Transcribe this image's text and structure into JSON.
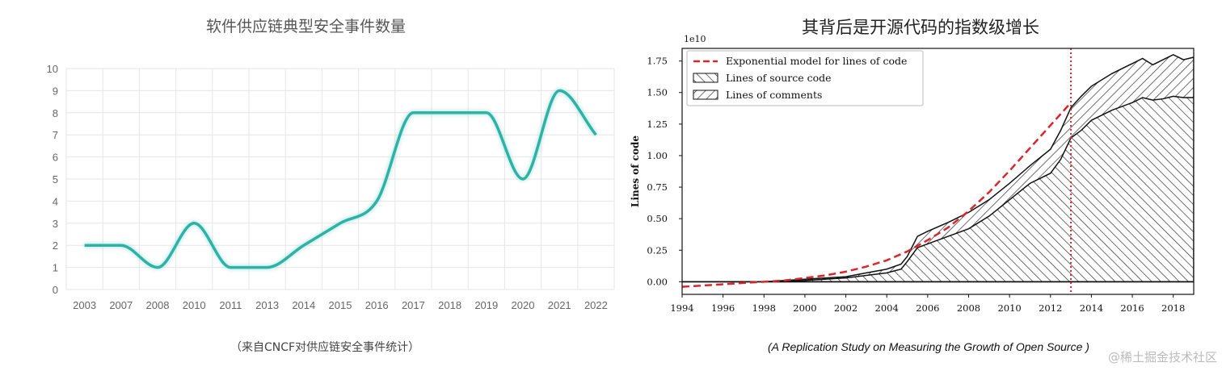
{
  "left": {
    "title": "软件供应链典型安全事件数量",
    "caption": "（来自CNCF对供应链安全事件统计）"
  },
  "right": {
    "title": "其背后是开源代码的指数级增长",
    "caption": "(A Replication Study on Measuring the Growth of Open Source )",
    "watermark": "@稀土掘金技术社区"
  },
  "colors": {
    "line": "#2bb3a7",
    "red": "#d9262b",
    "grid": "#e6e6e6"
  },
  "chart_data": [
    {
      "type": "line",
      "title": "软件供应链典型安全事件数量",
      "categories": [
        "2003",
        "2007",
        "2008",
        "2010",
        "2011",
        "2013",
        "2014",
        "2015",
        "2016",
        "2017",
        "2018",
        "2019",
        "2020",
        "2021",
        "2022"
      ],
      "values": [
        2,
        2,
        1,
        3,
        1,
        1,
        2,
        3,
        4,
        8,
        8,
        8,
        5,
        9,
        7
      ],
      "ylim": [
        0,
        10
      ],
      "yticks": [
        "0",
        "1",
        "2",
        "3",
        "4",
        "5",
        "6",
        "7",
        "8",
        "9",
        "10"
      ],
      "smooth": true,
      "grid": true
    },
    {
      "type": "area",
      "ylabel": "Lines of code",
      "scale_label": "1e10",
      "xlim": [
        1994,
        2019
      ],
      "ylim": [
        -0.1,
        1.85
      ],
      "xticks": [
        "1994",
        "1996",
        "1998",
        "2000",
        "2002",
        "2004",
        "2006",
        "2008",
        "2010",
        "2012",
        "2014",
        "2016",
        "2018"
      ],
      "yticks": [
        "0.00",
        "0.25",
        "0.50",
        "0.75",
        "1.00",
        "1.25",
        "1.50",
        "1.75"
      ],
      "legend_position": "top-left",
      "legend": [
        "Exponential model for lines of code",
        "Lines of source code",
        "Lines of comments"
      ],
      "vline_x": 2013,
      "series": [
        {
          "name": "Exponential model for lines of code",
          "x": [
            1994,
            1995,
            1996,
            1997,
            1998,
            1999,
            2000,
            2001,
            2002,
            2003,
            2004,
            2005,
            2006,
            2007,
            2008,
            2009,
            2010,
            2011,
            2012,
            2013
          ],
          "values": [
            -0.04,
            -0.03,
            -0.02,
            -0.01,
            0.0,
            0.01,
            0.03,
            0.05,
            0.08,
            0.12,
            0.17,
            0.24,
            0.33,
            0.43,
            0.56,
            0.71,
            0.88,
            1.06,
            1.24,
            1.42
          ]
        },
        {
          "name": "Lines of source code",
          "x": [
            1994,
            1996,
            1998,
            2000,
            2002,
            2003,
            2004,
            2004.7,
            2005,
            2005.5,
            2006,
            2007,
            2008,
            2009,
            2010,
            2011,
            2012,
            2012.5,
            2013,
            2013.5,
            2014,
            2015,
            2016,
            2016.5,
            2017,
            2017.5,
            2018,
            2018.5,
            2019
          ],
          "values": [
            0.0,
            0.0,
            0.0,
            0.01,
            0.03,
            0.05,
            0.07,
            0.1,
            0.16,
            0.27,
            0.3,
            0.36,
            0.42,
            0.52,
            0.65,
            0.78,
            0.86,
            0.97,
            1.14,
            1.2,
            1.28,
            1.36,
            1.42,
            1.46,
            1.44,
            1.45,
            1.47,
            1.46,
            1.46
          ]
        },
        {
          "name": "Lines of comments",
          "x": [
            1994,
            1996,
            1998,
            2000,
            2002,
            2003,
            2004,
            2004.7,
            2005,
            2005.5,
            2006,
            2007,
            2008,
            2009,
            2010,
            2011,
            2012,
            2012.5,
            2013,
            2013.5,
            2014,
            2015,
            2016,
            2016.5,
            2017,
            2017.5,
            2018,
            2018.5,
            2019
          ],
          "values": [
            0.0,
            0.0,
            0.0,
            0.02,
            0.04,
            0.07,
            0.1,
            0.14,
            0.2,
            0.36,
            0.4,
            0.47,
            0.55,
            0.65,
            0.78,
            0.92,
            1.05,
            1.2,
            1.38,
            1.47,
            1.55,
            1.65,
            1.73,
            1.77,
            1.72,
            1.76,
            1.8,
            1.76,
            1.78
          ]
        }
      ]
    }
  ]
}
